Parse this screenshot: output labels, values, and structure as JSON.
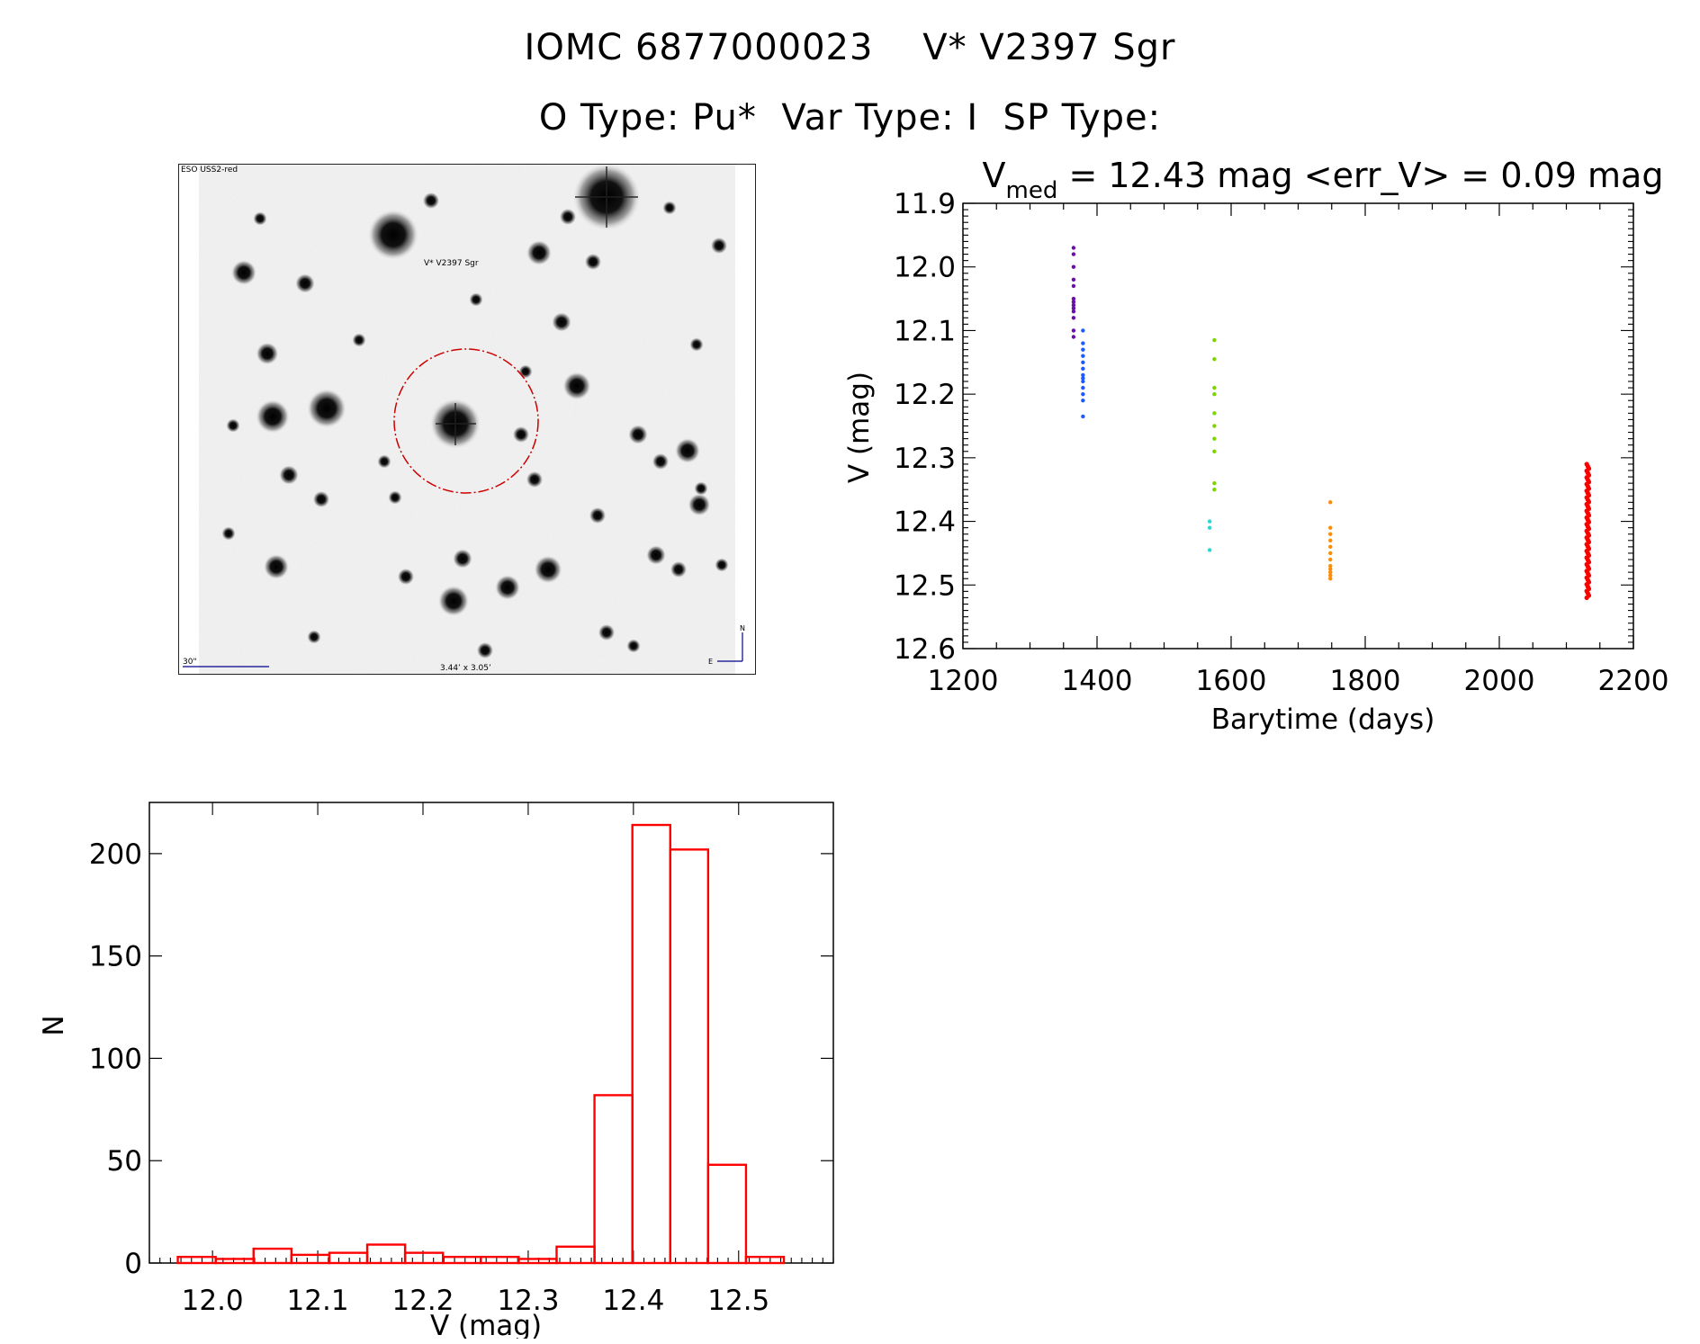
{
  "header": {
    "line1": "IOMC 6877000023    V* V2397 Sgr",
    "line2": "O Type: Pu*  Var Type: I  SP Type:"
  },
  "sky_image": {
    "survey_label": "ESO USS2-red",
    "target_label": "V* V2397 Sgr",
    "scale_label": "30\"",
    "size_label": "3.44’ x 3.05’",
    "compass_n": "N",
    "compass_e": "E",
    "label_color": "#00008b",
    "circle_color": "#cc0000"
  },
  "chart_data": [
    {
      "type": "scatter",
      "title_prefix": "V",
      "title_sub": "med",
      "title_rest": " = 12.43 mag <err_V> = 0.09 mag",
      "xlabel": "Barytime (days)",
      "ylabel": "V (mag)",
      "xlim": [
        1200,
        2200
      ],
      "ylim": [
        12.6,
        11.9
      ],
      "y_inverted": true,
      "xticks": [
        "1200",
        "1400",
        "1600",
        "1800",
        "2000",
        "2200"
      ],
      "xtick_values": [
        1200,
        1400,
        1600,
        1800,
        2000,
        2200
      ],
      "yticks": [
        "11.9",
        "12.0",
        "12.1",
        "12.2",
        "12.3",
        "12.4",
        "12.5",
        "12.6"
      ],
      "ytick_values": [
        11.9,
        12.0,
        12.1,
        12.2,
        12.3,
        12.4,
        12.5,
        12.6
      ],
      "grid": false,
      "groups": [
        {
          "color": "#6a0dad",
          "x": 1365,
          "y": [
            11.97,
            11.98,
            12.0,
            12.02,
            12.03,
            12.05,
            12.055,
            12.06,
            12.065,
            12.07,
            12.08,
            12.1,
            12.11
          ]
        },
        {
          "color": "#1e5bff",
          "x": 1379,
          "y": [
            12.1,
            12.12,
            12.13,
            12.14,
            12.15,
            12.16,
            12.17,
            12.175,
            12.18,
            12.19,
            12.2,
            12.21,
            12.235
          ]
        },
        {
          "color": "#7cd300",
          "x": 1575,
          "y": [
            12.115,
            12.145,
            12.19,
            12.2,
            12.23,
            12.25,
            12.27,
            12.29,
            12.34,
            12.35
          ]
        },
        {
          "color": "#2ad6d6",
          "x": 1568,
          "y": [
            12.4,
            12.41,
            12.445
          ]
        },
        {
          "color": "#ff8c00",
          "x": 1748,
          "y": [
            12.37,
            12.41,
            12.42,
            12.43,
            12.44,
            12.45,
            12.46,
            12.47,
            12.475,
            12.48,
            12.485,
            12.49
          ]
        },
        {
          "color": "#ff0000",
          "x": 2132,
          "y_range": [
            12.31,
            12.52
          ],
          "dense": true
        }
      ]
    },
    {
      "type": "bar",
      "xlabel": "V (mag)",
      "ylabel": "N",
      "xlim": [
        11.94,
        12.59
      ],
      "ylim": [
        0,
        225
      ],
      "xticks": [
        "12.0",
        "12.1",
        "12.2",
        "12.3",
        "12.4",
        "12.5"
      ],
      "xtick_values": [
        12.0,
        12.1,
        12.2,
        12.3,
        12.4,
        12.5
      ],
      "yticks": [
        "0",
        "50",
        "100",
        "150",
        "200"
      ],
      "ytick_values": [
        0,
        50,
        100,
        150,
        200
      ],
      "bin_width": 0.036,
      "bin_start": 11.967,
      "values": [
        3,
        2,
        7,
        4,
        5,
        9,
        5,
        3,
        3,
        2,
        8,
        82,
        214,
        202,
        48,
        3
      ],
      "color": "#ff0000",
      "grid": false
    }
  ]
}
